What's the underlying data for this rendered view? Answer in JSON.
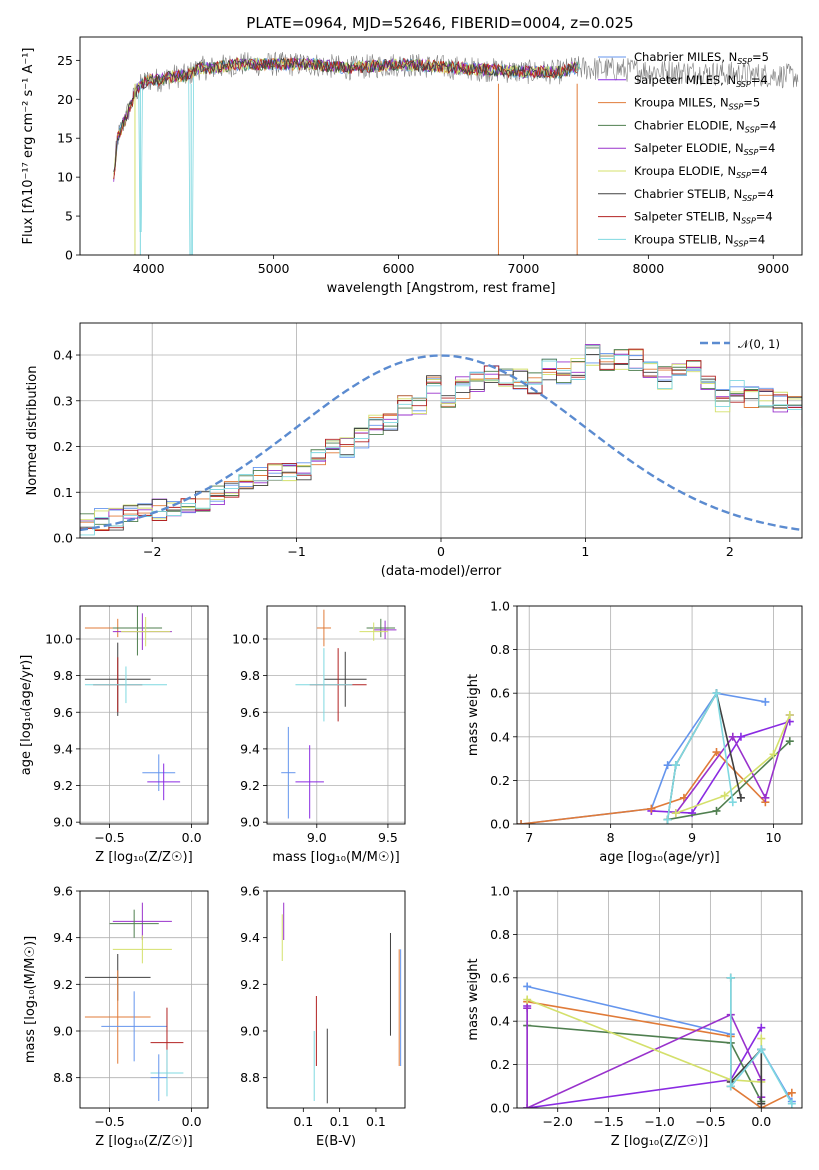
{
  "colors": [
    "#6495ed",
    "#8a2be2",
    "#e07b39",
    "#4f7f4f",
    "#9932cc",
    "#d4e06b",
    "#404040",
    "#b22222",
    "#7fd8e0"
  ],
  "figure": {
    "title": "PLATE=0964, MJD=52646, FIBERID=0004, z=0.025"
  },
  "chart_data": [
    {
      "id": "spectrum",
      "type": "line",
      "xlabel": "wavelength [Angstrom, rest frame]",
      "ylabel": "Flux [fλ10⁻¹⁷ erg cm⁻² s⁻¹ A⁻¹]",
      "xlim": [
        3450,
        9230
      ],
      "ylim": [
        0,
        28
      ],
      "xticks": [
        4000,
        5000,
        6000,
        7000,
        8000,
        9000
      ],
      "yticks": [
        0,
        5,
        10,
        15,
        20,
        25
      ],
      "grid": false,
      "legend_position": "top-right",
      "series": [
        {
          "name": "Chabrier MILES, N_SSP=5",
          "color": "#6495ed"
        },
        {
          "name": "Salpeter MILES, N_SSP=4",
          "color": "#8a2be2"
        },
        {
          "name": "Kroupa MILES, N_SSP=5",
          "color": "#e07b39"
        },
        {
          "name": "Chabrier ELODIE, N_SSP=4",
          "color": "#4f7f4f"
        },
        {
          "name": "Salpeter ELODIE, N_SSP=4",
          "color": "#9932cc"
        },
        {
          "name": "Kroupa ELODIE, N_SSP=4",
          "color": "#d4e06b"
        },
        {
          "name": "Chabrier STELIB, N_SSP=4",
          "color": "#404040"
        },
        {
          "name": "Salpeter STELIB, N_SSP=4",
          "color": "#b22222"
        },
        {
          "name": "Kroupa STELIB, N_SSP=4",
          "color": "#7fd8e0"
        }
      ],
      "continuum": {
        "x": [
          3720,
          3750,
          3800,
          3850,
          3900,
          3950,
          4000,
          4100,
          4200,
          4300,
          4400,
          4500,
          4700,
          5000,
          5300,
          5600,
          6000,
          6500,
          7000,
          7300,
          7400,
          7450
        ],
        "y": [
          10,
          15,
          17,
          19,
          21,
          22,
          22.5,
          22.5,
          23,
          23,
          24,
          24,
          24.5,
          24.5,
          24.5,
          24,
          24.5,
          24,
          23.5,
          23.5,
          24,
          24
        ]
      },
      "drops": [
        {
          "x": 3890,
          "label_series": "Kroupa ELODIE"
        },
        {
          "x": 3933,
          "label_series": "Kroupa STELIB"
        },
        {
          "x": 4340,
          "label_series": "Kroupa STELIB"
        },
        {
          "x": 6800,
          "label_series": "Kroupa MILES"
        },
        {
          "x": 7430,
          "label_series": "Kroupa MILES"
        }
      ]
    },
    {
      "id": "residuals",
      "type": "line",
      "xlabel": "(data-model)/error",
      "ylabel": "Normed distribution",
      "xlim": [
        -2.5,
        2.5
      ],
      "ylim": [
        0,
        0.47
      ],
      "xticks": [
        -2,
        -1,
        0,
        1,
        2
      ],
      "yticks": [
        0.0,
        0.1,
        0.2,
        0.3,
        0.4
      ],
      "grid": true,
      "legend_position": "top-right",
      "gaussian": {
        "name": "𝒩(0, 1)",
        "mu": 0,
        "sigma": 1,
        "color": "#5b8bd0"
      },
      "bin_edges_start": -2.5,
      "bin_width": 0.1,
      "hist_mean": [
        0.03,
        0.04,
        0.04,
        0.05,
        0.05,
        0.06,
        0.07,
        0.07,
        0.08,
        0.09,
        0.11,
        0.12,
        0.13,
        0.14,
        0.15,
        0.15,
        0.18,
        0.2,
        0.2,
        0.22,
        0.25,
        0.26,
        0.29,
        0.29,
        0.33,
        0.31,
        0.33,
        0.34,
        0.36,
        0.35,
        0.35,
        0.34,
        0.37,
        0.36,
        0.37,
        0.4,
        0.38,
        0.39,
        0.39,
        0.37,
        0.35,
        0.37,
        0.37,
        0.34,
        0.3,
        0.32,
        0.31,
        0.31,
        0.3,
        0.3,
        0.26,
        0.23,
        0.22,
        0.2,
        0.2,
        0.19,
        0.15,
        0.14,
        0.12,
        0.12,
        0.1,
        0.08,
        0.08,
        0.08,
        0.07,
        0.07,
        0.06,
        0.06,
        0.05,
        0.05
      ]
    },
    {
      "id": "age-vs-Z",
      "type": "scatter",
      "xlabel": "Z [log₁₀(Z/Z☉)]",
      "ylabel": "age  [log₁₀(age/yr)]",
      "xlim": [
        -0.68,
        0.1
      ],
      "ylim": [
        8.99,
        10.18
      ],
      "xticks": [
        -0.5,
        0.0
      ],
      "yticks": [
        9.0,
        9.2,
        9.4,
        9.6,
        9.8,
        10.0
      ],
      "grid": true,
      "points": [
        {
          "x": -0.45,
          "y": 10.06,
          "xerr": 0.2,
          "yerr": 0.05,
          "c": 2
        },
        {
          "x": -0.33,
          "y": 10.06,
          "xerr": 0.15,
          "yerr": 0.15,
          "c": 3
        },
        {
          "x": -0.3,
          "y": 10.04,
          "xerr": 0.18,
          "yerr": 0.1,
          "c": 4
        },
        {
          "x": -0.28,
          "y": 10.04,
          "xerr": 0.15,
          "yerr": 0.08,
          "c": 5
        },
        {
          "x": -0.45,
          "y": 9.78,
          "xerr": 0.2,
          "yerr": 0.2,
          "c": 6
        },
        {
          "x": -0.45,
          "y": 9.75,
          "xerr": 0.15,
          "yerr": 0.15,
          "c": 7
        },
        {
          "x": -0.4,
          "y": 9.75,
          "xerr": 0.25,
          "yerr": 0.1,
          "c": 8
        },
        {
          "x": -0.2,
          "y": 9.27,
          "xerr": 0.1,
          "yerr": 0.1,
          "c": 9
        },
        {
          "x": -0.17,
          "y": 9.22,
          "xerr": 0.1,
          "yerr": 0.1,
          "c": 10
        }
      ]
    },
    {
      "id": "age-vs-mass",
      "type": "scatter",
      "xlabel": "mass [log₁₀(M/M☉)]",
      "ylabel": "",
      "xlim": [
        8.65,
        9.62
      ],
      "ylim": [
        8.99,
        10.18
      ],
      "xticks": [
        9.0,
        9.5
      ],
      "yticks": [
        9.0,
        9.2,
        9.4,
        9.6,
        9.8,
        10.0
      ],
      "grid": true,
      "points": [
        {
          "x": 9.05,
          "y": 10.06,
          "xerr": 0.05,
          "yerr": 0.1,
          "c": 2
        },
        {
          "x": 9.45,
          "y": 10.06,
          "xerr": 0.1,
          "yerr": 0.05,
          "c": 3
        },
        {
          "x": 9.48,
          "y": 10.05,
          "xerr": 0.08,
          "yerr": 0.05,
          "c": 4
        },
        {
          "x": 9.4,
          "y": 10.04,
          "xerr": 0.1,
          "yerr": 0.05,
          "c": 5
        },
        {
          "x": 9.2,
          "y": 9.78,
          "xerr": 0.15,
          "yerr": 0.15,
          "c": 6
        },
        {
          "x": 9.15,
          "y": 9.75,
          "xerr": 0.2,
          "yerr": 0.2,
          "c": 7
        },
        {
          "x": 9.05,
          "y": 9.75,
          "xerr": 0.2,
          "yerr": 0.2,
          "c": 8
        },
        {
          "x": 8.8,
          "y": 9.27,
          "xerr": 0.05,
          "yerr": 0.25,
          "c": 9
        },
        {
          "x": 8.95,
          "y": 9.22,
          "xerr": 0.1,
          "yerr": 0.2,
          "c": 10
        }
      ]
    },
    {
      "id": "massweight-vs-age",
      "type": "line",
      "xlabel": "age  [log₁₀(age/yr)]",
      "ylabel": "mass weight",
      "xlim": [
        6.85,
        10.35
      ],
      "ylim": [
        0,
        1.0
      ],
      "xticks": [
        7,
        8,
        9,
        10
      ],
      "yticks": [
        0.0,
        0.2,
        0.4,
        0.6,
        0.8,
        1.0
      ],
      "grid": true,
      "series": [
        {
          "x": [
            6.9,
            8.5,
            8.7,
            9.3,
            9.9
          ],
          "y": [
            0.0,
            0.07,
            0.27,
            0.6,
            0.56
          ],
          "c": 0
        },
        {
          "x": [
            8.5,
            9.0,
            9.6,
            10.2
          ],
          "y": [
            0.06,
            0.05,
            0.4,
            0.47
          ],
          "c": 1
        },
        {
          "x": [
            6.9,
            8.5,
            8.9,
            9.3,
            9.9
          ],
          "y": [
            0.0,
            0.07,
            0.12,
            0.33,
            0.1
          ],
          "c": 2
        },
        {
          "x": [
            8.7,
            9.3,
            10.2
          ],
          "y": [
            0.02,
            0.06,
            0.38
          ],
          "c": 3
        },
        {
          "x": [
            8.8,
            9.5,
            9.9,
            10.2
          ],
          "y": [
            0.05,
            0.4,
            0.12,
            0.5
          ],
          "c": 4
        },
        {
          "x": [
            8.8,
            9.4,
            10.0,
            10.2
          ],
          "y": [
            0.05,
            0.13,
            0.32,
            0.5
          ],
          "c": 5
        },
        {
          "x": [
            8.7,
            8.8,
            9.3,
            9.6
          ],
          "y": [
            0.02,
            0.27,
            0.6,
            0.12
          ],
          "c": 6
        },
        {
          "x": [
            8.7,
            8.8,
            9.3,
            9.5
          ],
          "y": [
            0.02,
            0.27,
            0.6,
            0.1
          ],
          "c": 8
        }
      ]
    },
    {
      "id": "mass-vs-Z",
      "type": "scatter",
      "xlabel": "Z [log₁₀(Z/Z☉)]",
      "ylabel": "mass [log₁₀(M/M☉)]",
      "xlim": [
        -0.68,
        0.1
      ],
      "ylim": [
        8.67,
        9.6
      ],
      "xticks": [
        -0.5,
        0.0
      ],
      "yticks": [
        8.8,
        9.0,
        9.2,
        9.4,
        9.6
      ],
      "grid": true,
      "points": [
        {
          "x": -0.3,
          "y": 9.47,
          "xerr": 0.18,
          "yerr": 0.08,
          "c": 4
        },
        {
          "x": -0.35,
          "y": 9.46,
          "xerr": 0.15,
          "yerr": 0.06,
          "c": 3
        },
        {
          "x": -0.3,
          "y": 9.35,
          "xerr": 0.18,
          "yerr": 0.06,
          "c": 5
        },
        {
          "x": -0.45,
          "y": 9.23,
          "xerr": 0.2,
          "yerr": 0.1,
          "c": 6
        },
        {
          "x": -0.45,
          "y": 9.06,
          "xerr": 0.2,
          "yerr": 0.2,
          "c": 2
        },
        {
          "x": -0.35,
          "y": 9.02,
          "xerr": 0.2,
          "yerr": 0.15,
          "c": 0
        },
        {
          "x": -0.15,
          "y": 8.95,
          "xerr": 0.1,
          "yerr": 0.15,
          "c": 7
        },
        {
          "x": -0.15,
          "y": 8.82,
          "xerr": 0.1,
          "yerr": 0.1,
          "c": 8
        },
        {
          "x": -0.2,
          "y": 8.8,
          "xerr": 0.05,
          "yerr": 0.1,
          "c": 9
        }
      ]
    },
    {
      "id": "mass-vs-EBV",
      "type": "scatter",
      "xlabel": "E(B-V)",
      "ylabel": "",
      "xlim": [
        0.0,
        0.19
      ],
      "ylim": [
        8.67,
        9.6
      ],
      "xticks": [
        0.05,
        0.1,
        0.15
      ],
      "yticks": [
        8.8,
        9.0,
        9.2,
        9.4,
        9.6
      ],
      "grid": false,
      "points": [
        {
          "x": 0.023,
          "y": 9.47,
          "yerr": 0.08,
          "c": 4
        },
        {
          "x": 0.021,
          "y": 9.4,
          "yerr": 0.1,
          "c": 5
        },
        {
          "x": 0.068,
          "y": 9.0,
          "yerr": 0.15,
          "c": 7
        },
        {
          "x": 0.065,
          "y": 8.85,
          "yerr": 0.15,
          "c": 8
        },
        {
          "x": 0.083,
          "y": 8.85,
          "yerr": 0.16,
          "c": 6
        },
        {
          "x": 0.17,
          "y": 9.2,
          "yerr": 0.22,
          "c": 6
        },
        {
          "x": 0.182,
          "y": 9.1,
          "yerr": 0.25,
          "c": 2
        },
        {
          "x": 0.184,
          "y": 9.1,
          "yerr": 0.25,
          "c": 0
        }
      ]
    },
    {
      "id": "massweight-vs-Z",
      "type": "line",
      "xlabel": "Z [log₁₀(Z/Z☉)]",
      "ylabel": "mass weight",
      "xlim": [
        -2.4,
        0.4
      ],
      "ylim": [
        0,
        1.0
      ],
      "xticks": [
        -2.0,
        -1.5,
        -1.0,
        -0.5,
        0.0
      ],
      "yticks": [
        0.0,
        0.2,
        0.4,
        0.6,
        0.8,
        1.0
      ],
      "grid": true,
      "series": [
        {
          "x": [
            -2.3,
            -0.3,
            -0.3,
            0.0,
            0.3
          ],
          "y": [
            0.56,
            0.34,
            0.1,
            0.27,
            0.03
          ],
          "c": 0
        },
        {
          "x": [
            -2.3,
            -2.3,
            -0.3,
            0.0
          ],
          "y": [
            0.47,
            0.0,
            0.13,
            0.37
          ],
          "c": 1
        },
        {
          "x": [
            -2.3,
            -0.3,
            -0.3,
            0.0,
            0.3
          ],
          "y": [
            0.49,
            0.33,
            0.1,
            0.0,
            0.07
          ],
          "c": 2
        },
        {
          "x": [
            -2.3,
            -0.3,
            0.0
          ],
          "y": [
            0.38,
            0.3,
            0.03
          ],
          "c": 3
        },
        {
          "x": [
            -2.3,
            -2.3,
            -0.3,
            0.0,
            0.0
          ],
          "y": [
            0.46,
            0.0,
            0.43,
            0.13,
            0.05
          ],
          "c": 4
        },
        {
          "x": [
            -2.3,
            -0.3,
            0.0,
            0.0
          ],
          "y": [
            0.5,
            0.13,
            0.12,
            0.32
          ],
          "c": 5
        },
        {
          "x": [
            -0.3,
            -0.3,
            0.0,
            0.0
          ],
          "y": [
            0.6,
            0.12,
            0.27,
            0.02
          ],
          "c": 6
        },
        {
          "x": [
            -0.3,
            -0.3,
            0.0,
            0.3
          ],
          "y": [
            0.6,
            0.1,
            0.27,
            0.02
          ],
          "c": 8
        }
      ]
    }
  ]
}
